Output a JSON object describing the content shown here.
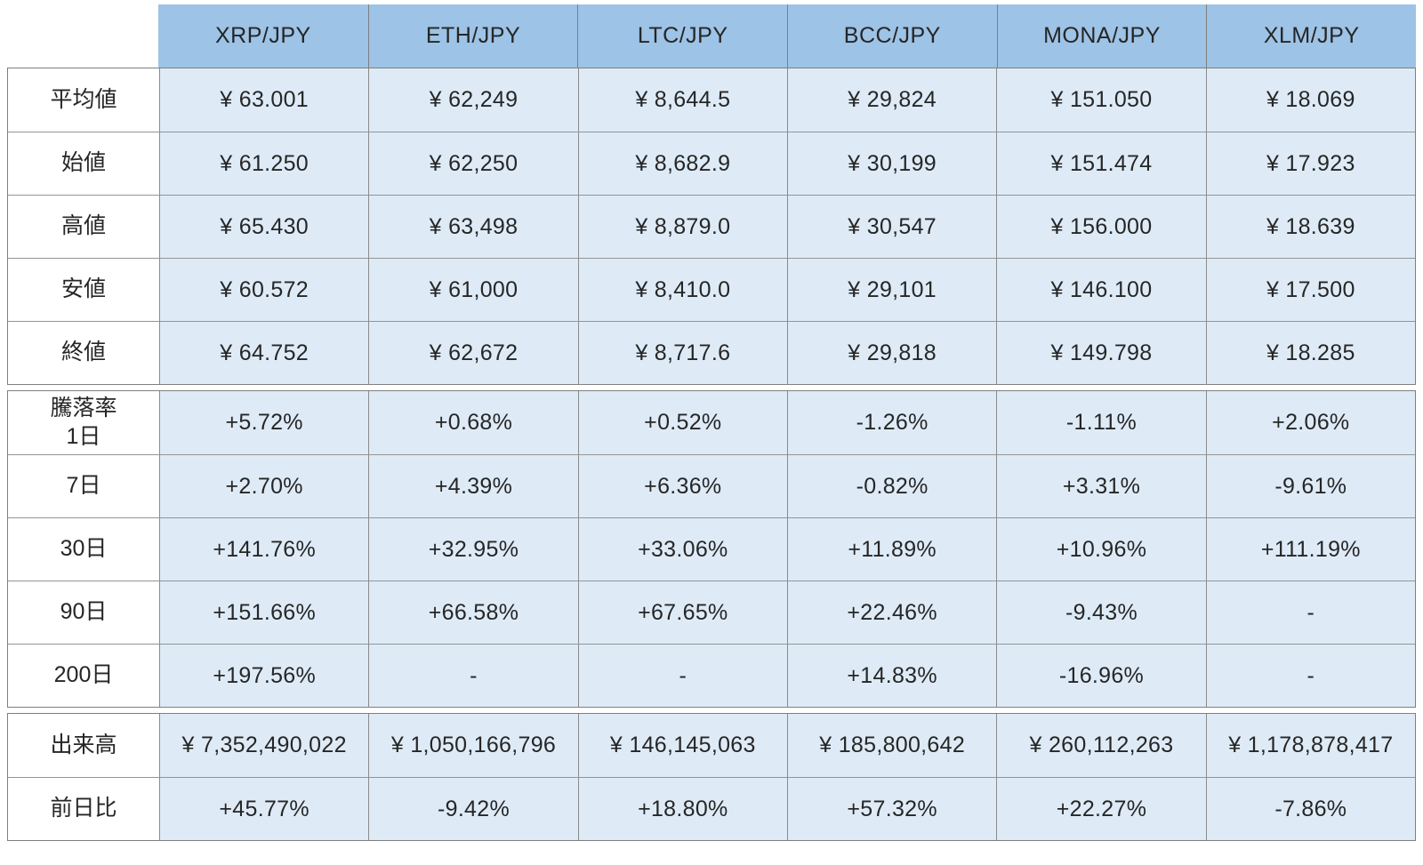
{
  "chart_data": {
    "type": "table",
    "title": "",
    "columns": [
      "XRP/JPY",
      "ETH/JPY",
      "LTC/JPY",
      "BCC/JPY",
      "MONA/JPY",
      "XLM/JPY"
    ],
    "sections": [
      {
        "name": "price-summary",
        "rows": [
          {
            "label": "平均値",
            "values": [
              "¥ 63.001",
              "¥ 62,249",
              "¥ 8,644.5",
              "¥ 29,824",
              "¥ 151.050",
              "¥ 18.069"
            ]
          },
          {
            "label": "始値",
            "values": [
              "¥ 61.250",
              "¥ 62,250",
              "¥ 8,682.9",
              "¥ 30,199",
              "¥ 151.474",
              "¥ 17.923"
            ]
          },
          {
            "label": "高値",
            "values": [
              "¥ 65.430",
              "¥ 63,498",
              "¥ 8,879.0",
              "¥ 30,547",
              "¥ 156.000",
              "¥ 18.639"
            ]
          },
          {
            "label": "安値",
            "values": [
              "¥ 60.572",
              "¥ 61,000",
              "¥ 8,410.0",
              "¥ 29,101",
              "¥ 146.100",
              "¥ 17.500"
            ]
          },
          {
            "label": "終値",
            "values": [
              "¥ 64.752",
              "¥ 62,672",
              "¥ 8,717.6",
              "¥ 29,818",
              "¥ 149.798",
              "¥ 18.285"
            ]
          }
        ]
      },
      {
        "name": "change-rate",
        "rows": [
          {
            "label": "騰落率\n1日",
            "values": [
              "+5.72%",
              "+0.68%",
              "+0.52%",
              "-1.26%",
              "-1.11%",
              "+2.06%"
            ]
          },
          {
            "label": "7日",
            "values": [
              "+2.70%",
              "+4.39%",
              "+6.36%",
              "-0.82%",
              "+3.31%",
              "-9.61%"
            ]
          },
          {
            "label": "30日",
            "values": [
              "+141.76%",
              "+32.95%",
              "+33.06%",
              "+11.89%",
              "+10.96%",
              "+111.19%"
            ]
          },
          {
            "label": "90日",
            "values": [
              "+151.66%",
              "+66.58%",
              "+67.65%",
              "+22.46%",
              "-9.43%",
              "-"
            ]
          },
          {
            "label": "200日",
            "values": [
              "+197.56%",
              "-",
              "-",
              "+14.83%",
              "-16.96%",
              "-"
            ]
          }
        ]
      },
      {
        "name": "volume",
        "rows": [
          {
            "label": "出来高",
            "values": [
              "¥ 7,352,490,022",
              "¥ 1,050,166,796",
              "¥ 146,145,063",
              "¥ 185,800,642",
              "¥ 260,112,263",
              "¥ 1,178,878,417"
            ]
          },
          {
            "label": "前日比",
            "values": [
              "+45.77%",
              "-9.42%",
              "+18.80%",
              "+57.32%",
              "+22.27%",
              "-7.86%"
            ]
          }
        ]
      }
    ],
    "layout": {
      "header_position": "top",
      "row_label_column": "left",
      "grid": "on"
    }
  },
  "colors": {
    "header_bg": "#9dc3e6",
    "cell_bg": "#deebf7",
    "label_bg": "#ffffff",
    "border": "#7f7f7f",
    "text": "#262626"
  }
}
